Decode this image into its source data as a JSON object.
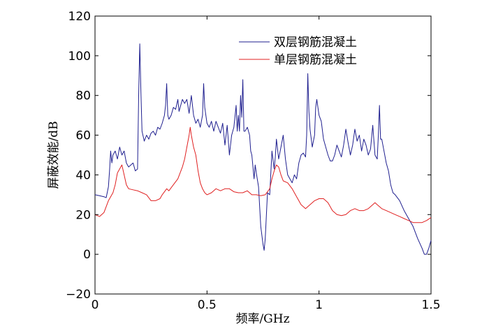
{
  "chart_data": {
    "type": "line",
    "title": "",
    "xlabel": "频率/GHz",
    "ylabel": "屏蔽效能/dB",
    "xlim": [
      0,
      1.5
    ],
    "ylim": [
      -20,
      120
    ],
    "xticks": [
      0,
      0.5,
      1,
      1.5
    ],
    "xtick_labels": [
      "0",
      "0.5",
      "1",
      "1.5"
    ],
    "yticks": [
      -20,
      0,
      20,
      40,
      60,
      80,
      100,
      120
    ],
    "ytick_labels": [
      "−20",
      "0",
      "20",
      "40",
      "60",
      "80",
      "100",
      "120"
    ],
    "grid": false,
    "legend_position": "top-right",
    "series": [
      {
        "name": "双层钢筋混凝土",
        "color": "#1f1f8f",
        "points": [
          [
            0.0,
            30
          ],
          [
            0.02,
            29.5
          ],
          [
            0.04,
            29
          ],
          [
            0.05,
            28.5
          ],
          [
            0.06,
            34
          ],
          [
            0.065,
            42
          ],
          [
            0.07,
            52
          ],
          [
            0.075,
            46
          ],
          [
            0.08,
            50
          ],
          [
            0.09,
            52
          ],
          [
            0.1,
            48
          ],
          [
            0.11,
            54
          ],
          [
            0.12,
            50
          ],
          [
            0.13,
            52
          ],
          [
            0.14,
            46
          ],
          [
            0.15,
            44
          ],
          [
            0.17,
            46
          ],
          [
            0.18,
            42
          ],
          [
            0.19,
            43
          ],
          [
            0.195,
            80
          ],
          [
            0.2,
            106
          ],
          [
            0.205,
            82
          ],
          [
            0.21,
            62
          ],
          [
            0.22,
            57
          ],
          [
            0.23,
            60
          ],
          [
            0.24,
            58
          ],
          [
            0.25,
            61
          ],
          [
            0.26,
            62
          ],
          [
            0.27,
            60
          ],
          [
            0.28,
            64
          ],
          [
            0.29,
            63
          ],
          [
            0.3,
            66
          ],
          [
            0.31,
            70
          ],
          [
            0.315,
            75
          ],
          [
            0.32,
            86
          ],
          [
            0.325,
            70
          ],
          [
            0.33,
            68
          ],
          [
            0.34,
            70
          ],
          [
            0.35,
            74
          ],
          [
            0.36,
            73
          ],
          [
            0.37,
            78
          ],
          [
            0.375,
            72
          ],
          [
            0.38,
            74
          ],
          [
            0.39,
            78
          ],
          [
            0.4,
            76
          ],
          [
            0.41,
            78
          ],
          [
            0.42,
            71
          ],
          [
            0.43,
            80
          ],
          [
            0.44,
            70
          ],
          [
            0.45,
            66
          ],
          [
            0.46,
            68
          ],
          [
            0.47,
            64
          ],
          [
            0.48,
            70
          ],
          [
            0.485,
            86
          ],
          [
            0.49,
            74
          ],
          [
            0.5,
            66
          ],
          [
            0.51,
            64
          ],
          [
            0.52,
            67
          ],
          [
            0.53,
            62
          ],
          [
            0.54,
            67
          ],
          [
            0.55,
            64
          ],
          [
            0.56,
            61
          ],
          [
            0.57,
            66
          ],
          [
            0.58,
            55
          ],
          [
            0.59,
            65
          ],
          [
            0.6,
            50
          ],
          [
            0.61,
            60
          ],
          [
            0.62,
            64
          ],
          [
            0.63,
            75
          ],
          [
            0.635,
            62
          ],
          [
            0.64,
            70
          ],
          [
            0.645,
            62
          ],
          [
            0.65,
            80
          ],
          [
            0.655,
            69
          ],
          [
            0.66,
            88
          ],
          [
            0.665,
            62
          ],
          [
            0.67,
            62
          ],
          [
            0.68,
            64
          ],
          [
            0.69,
            60
          ],
          [
            0.695,
            52
          ],
          [
            0.7,
            50
          ],
          [
            0.71,
            38
          ],
          [
            0.715,
            45
          ],
          [
            0.72,
            41
          ],
          [
            0.73,
            34
          ],
          [
            0.74,
            14
          ],
          [
            0.75,
            5
          ],
          [
            0.755,
            2
          ],
          [
            0.76,
            8
          ],
          [
            0.77,
            31
          ],
          [
            0.78,
            30
          ],
          [
            0.79,
            52
          ],
          [
            0.8,
            43
          ],
          [
            0.805,
            49
          ],
          [
            0.81,
            58
          ],
          [
            0.82,
            48
          ],
          [
            0.83,
            54
          ],
          [
            0.84,
            60
          ],
          [
            0.85,
            48
          ],
          [
            0.86,
            40
          ],
          [
            0.87,
            38
          ],
          [
            0.88,
            36
          ],
          [
            0.89,
            40
          ],
          [
            0.9,
            38
          ],
          [
            0.91,
            46
          ],
          [
            0.92,
            50
          ],
          [
            0.93,
            51
          ],
          [
            0.94,
            49
          ],
          [
            0.945,
            60
          ],
          [
            0.95,
            91
          ],
          [
            0.955,
            72
          ],
          [
            0.96,
            63
          ],
          [
            0.97,
            54
          ],
          [
            0.98,
            60
          ],
          [
            0.985,
            74
          ],
          [
            0.99,
            78
          ],
          [
            1.0,
            70
          ],
          [
            1.01,
            67
          ],
          [
            1.02,
            58
          ],
          [
            1.03,
            54
          ],
          [
            1.04,
            50
          ],
          [
            1.05,
            47
          ],
          [
            1.06,
            47
          ],
          [
            1.07,
            50
          ],
          [
            1.08,
            55
          ],
          [
            1.09,
            52
          ],
          [
            1.1,
            49
          ],
          [
            1.11,
            55
          ],
          [
            1.12,
            63
          ],
          [
            1.13,
            56
          ],
          [
            1.14,
            50
          ],
          [
            1.15,
            55
          ],
          [
            1.16,
            63
          ],
          [
            1.17,
            57
          ],
          [
            1.18,
            60
          ],
          [
            1.19,
            52
          ],
          [
            1.2,
            58
          ],
          [
            1.21,
            55
          ],
          [
            1.22,
            50
          ],
          [
            1.23,
            53
          ],
          [
            1.24,
            65
          ],
          [
            1.25,
            50
          ],
          [
            1.26,
            48
          ],
          [
            1.265,
            60
          ],
          [
            1.27,
            75
          ],
          [
            1.275,
            58
          ],
          [
            1.28,
            58
          ],
          [
            1.29,
            52
          ],
          [
            1.3,
            46
          ],
          [
            1.31,
            42
          ],
          [
            1.32,
            35
          ],
          [
            1.33,
            31
          ],
          [
            1.34,
            30
          ],
          [
            1.36,
            27
          ],
          [
            1.38,
            22
          ],
          [
            1.4,
            18
          ],
          [
            1.42,
            14
          ],
          [
            1.44,
            8
          ],
          [
            1.46,
            3
          ],
          [
            1.47,
            0
          ],
          [
            1.48,
            0
          ],
          [
            1.49,
            3
          ],
          [
            1.5,
            7
          ]
        ]
      },
      {
        "name": "单层钢筋混凝土",
        "color": "#e02020",
        "points": [
          [
            0.0,
            20
          ],
          [
            0.02,
            19
          ],
          [
            0.04,
            21
          ],
          [
            0.06,
            27
          ],
          [
            0.08,
            31
          ],
          [
            0.09,
            35
          ],
          [
            0.1,
            41
          ],
          [
            0.11,
            43
          ],
          [
            0.12,
            45
          ],
          [
            0.13,
            40
          ],
          [
            0.14,
            35
          ],
          [
            0.15,
            33
          ],
          [
            0.17,
            32.5
          ],
          [
            0.19,
            32
          ],
          [
            0.21,
            31
          ],
          [
            0.23,
            30
          ],
          [
            0.25,
            27
          ],
          [
            0.27,
            27
          ],
          [
            0.29,
            28
          ],
          [
            0.3,
            30
          ],
          [
            0.32,
            33
          ],
          [
            0.33,
            32
          ],
          [
            0.35,
            35
          ],
          [
            0.37,
            38
          ],
          [
            0.39,
            44
          ],
          [
            0.4,
            48
          ],
          [
            0.41,
            54
          ],
          [
            0.42,
            60
          ],
          [
            0.425,
            64
          ],
          [
            0.43,
            60
          ],
          [
            0.44,
            54
          ],
          [
            0.45,
            50
          ],
          [
            0.46,
            42
          ],
          [
            0.47,
            36
          ],
          [
            0.48,
            33
          ],
          [
            0.49,
            31
          ],
          [
            0.5,
            30
          ],
          [
            0.52,
            31
          ],
          [
            0.54,
            33
          ],
          [
            0.56,
            32
          ],
          [
            0.58,
            33
          ],
          [
            0.6,
            33
          ],
          [
            0.62,
            31.5
          ],
          [
            0.64,
            31
          ],
          [
            0.66,
            31
          ],
          [
            0.68,
            32
          ],
          [
            0.7,
            30
          ],
          [
            0.72,
            30
          ],
          [
            0.74,
            29.5
          ],
          [
            0.76,
            30
          ],
          [
            0.78,
            33
          ],
          [
            0.79,
            38
          ],
          [
            0.8,
            42
          ],
          [
            0.81,
            45
          ],
          [
            0.82,
            44
          ],
          [
            0.83,
            40
          ],
          [
            0.84,
            37
          ],
          [
            0.86,
            36
          ],
          [
            0.88,
            33
          ],
          [
            0.9,
            29
          ],
          [
            0.92,
            25
          ],
          [
            0.94,
            23
          ],
          [
            0.96,
            25
          ],
          [
            0.98,
            27
          ],
          [
            1.0,
            28
          ],
          [
            1.02,
            28
          ],
          [
            1.04,
            26
          ],
          [
            1.06,
            22
          ],
          [
            1.08,
            20
          ],
          [
            1.1,
            19.5
          ],
          [
            1.12,
            20
          ],
          [
            1.14,
            22
          ],
          [
            1.16,
            23
          ],
          [
            1.18,
            22
          ],
          [
            1.2,
            22
          ],
          [
            1.22,
            23
          ],
          [
            1.24,
            25
          ],
          [
            1.25,
            26
          ],
          [
            1.26,
            25
          ],
          [
            1.28,
            23
          ],
          [
            1.3,
            22
          ],
          [
            1.32,
            21
          ],
          [
            1.34,
            20
          ],
          [
            1.36,
            19
          ],
          [
            1.38,
            18
          ],
          [
            1.4,
            17
          ],
          [
            1.42,
            16
          ],
          [
            1.44,
            16
          ],
          [
            1.46,
            16
          ],
          [
            1.48,
            17
          ],
          [
            1.5,
            18.5
          ]
        ]
      }
    ]
  }
}
